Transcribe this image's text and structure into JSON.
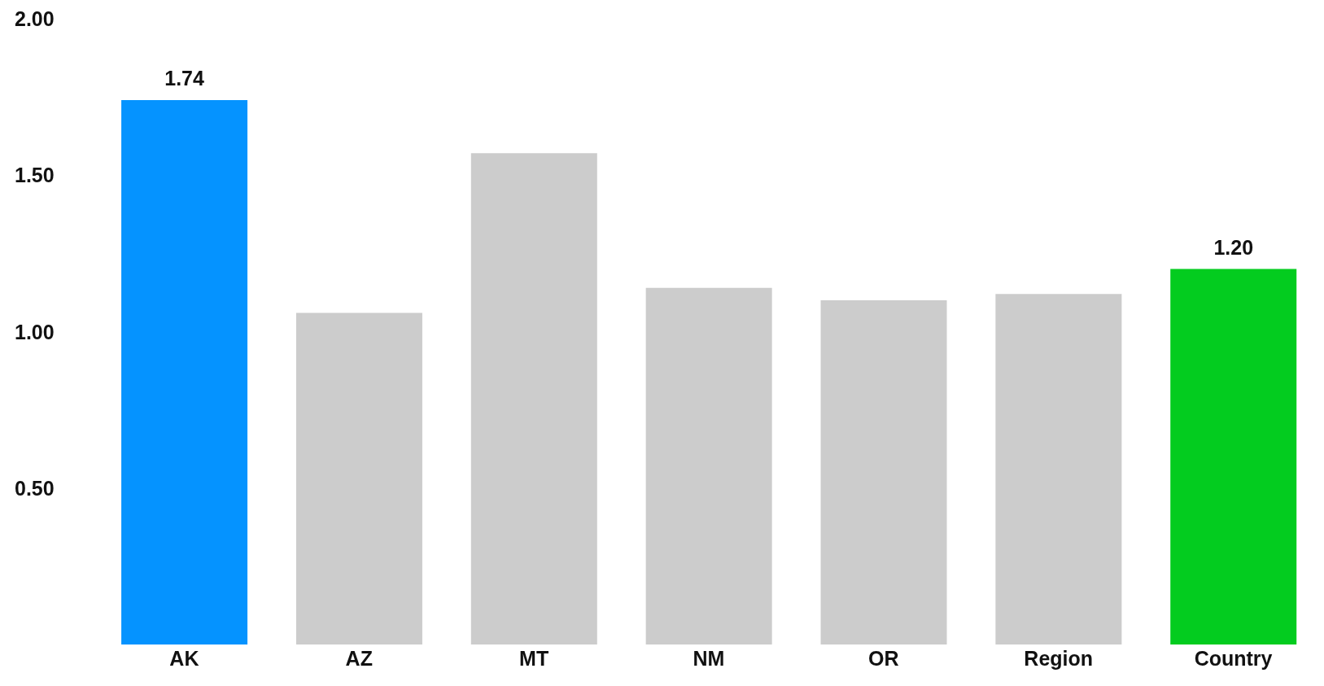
{
  "chart_data": {
    "type": "bar",
    "categories": [
      "AK",
      "AZ",
      "MT",
      "NM",
      "OR",
      "Region",
      "Country"
    ],
    "values": [
      1.74,
      1.06,
      1.57,
      1.14,
      1.1,
      1.12,
      1.2
    ],
    "colors": [
      "#0593ff",
      "#cccccc",
      "#cccccc",
      "#cccccc",
      "#cccccc",
      "#cccccc",
      "#03cc1f"
    ],
    "value_labels": [
      "1.74",
      null,
      null,
      null,
      null,
      null,
      "1.20"
    ],
    "ylim": [
      0,
      2
    ],
    "yticks": [
      {
        "value": 0.5,
        "label": "0.50"
      },
      {
        "value": 1,
        "label": "1.00"
      },
      {
        "value": 1.5,
        "label": "1.50"
      },
      {
        "value": 2,
        "label": "2.00"
      }
    ],
    "grid": false,
    "legend": false
  }
}
